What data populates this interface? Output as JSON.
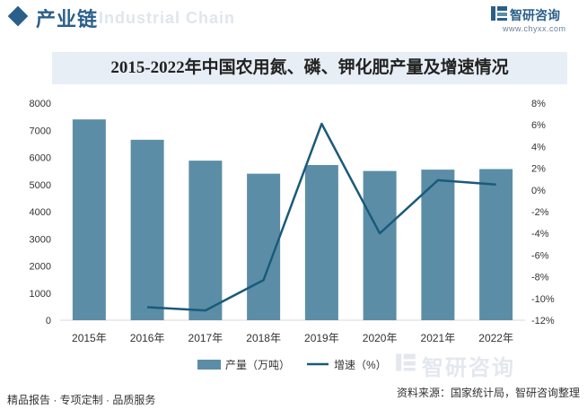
{
  "header": {
    "title": "产业链",
    "watermark": "Industrial Chain"
  },
  "brand": {
    "name": "智研咨询",
    "url": "www.chyxx.com"
  },
  "chart_data": {
    "type": "bar",
    "title": "2015-2022年中国农用氮、磷、钾化肥产量及增速情况",
    "categories": [
      "2015年",
      "2016年",
      "2017年",
      "2018年",
      "2019年",
      "2020年",
      "2021年",
      "2022年"
    ],
    "series": [
      {
        "name": "产量（万吨）",
        "type": "bar",
        "axis": "left",
        "values": [
          7400,
          6650,
          5880,
          5400,
          5720,
          5500,
          5550,
          5570
        ]
      },
      {
        "name": "增速（%）",
        "type": "line",
        "axis": "right",
        "values": [
          null,
          -10.8,
          -11.1,
          -8.3,
          6.1,
          -4.0,
          0.9,
          0.5
        ]
      }
    ],
    "y_left": {
      "min": 0,
      "max": 8000,
      "ticks": [
        "0",
        "1000",
        "2000",
        "3000",
        "4000",
        "5000",
        "6000",
        "7000",
        "8000"
      ]
    },
    "y_right": {
      "min": -12,
      "max": 8,
      "ticks": [
        "-12%",
        "-10%",
        "-8%",
        "-6%",
        "-4%",
        "-2%",
        "0%",
        "2%",
        "4%",
        "6%",
        "8%"
      ]
    },
    "colors": {
      "bar": "#5b8ea6",
      "line": "#1b5a7a"
    }
  },
  "legend": {
    "bar_label": "产量（万吨）",
    "line_label": "增速（%）"
  },
  "footer": {
    "left": "精品报告 · 专项定制 · 品质服务",
    "source": "资料来源：国家统计局，智研咨询整理",
    "watermark": "智研咨询"
  }
}
